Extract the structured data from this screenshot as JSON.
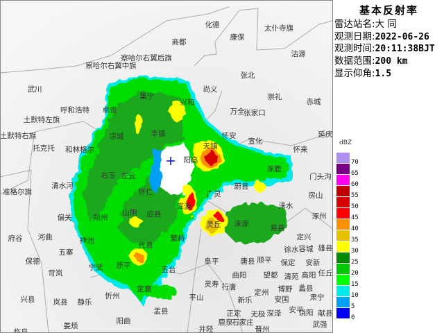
{
  "panel": {
    "title": "基本反射率",
    "rows": [
      {
        "label": "雷达站名:",
        "value": "大 同"
      },
      {
        "label": "观测日期:",
        "value": "2022-06-26"
      },
      {
        "label": "观测时间:",
        "value": "20:11:38BJT"
      },
      {
        "label": "数据范围:",
        "value": "200 km"
      },
      {
        "label": "显示仰角:",
        "value": "1.5"
      }
    ]
  },
  "legend": {
    "unit": "dBZ",
    "items": [
      {
        "value": "70",
        "color": "#ad90f0"
      },
      {
        "value": "65",
        "color": "#780084"
      },
      {
        "value": "60",
        "color": "#ff00f0"
      },
      {
        "value": "55",
        "color": "#c00000"
      },
      {
        "value": "50",
        "color": "#d60000"
      },
      {
        "value": "45",
        "color": "#ff0000"
      },
      {
        "value": "40",
        "color": "#ff9000"
      },
      {
        "value": "35",
        "color": "#e7c000"
      },
      {
        "value": "30",
        "color": "#ffff00"
      },
      {
        "value": "25",
        "color": "#008800"
      },
      {
        "value": "20",
        "color": "#00c800"
      },
      {
        "value": "15",
        "color": "#00ff00"
      },
      {
        "value": "10",
        "color": "#00ecec"
      },
      {
        "value": "5",
        "color": "#00a0f6"
      },
      {
        "value": "0",
        "color": "#0000f6"
      }
    ]
  },
  "map": {
    "places": [
      "化德",
      "康保",
      "太仆寺旗",
      "商都",
      "沽源",
      "察哈尔右翼后旗",
      "察哈尔右翼中旗",
      "张北",
      "武川",
      "尚义",
      "崇礼",
      "赤城",
      "兴和",
      "卓资",
      "呼和浩特",
      "集宁",
      "万全",
      "张家口",
      "土默特左旗",
      "丰镇",
      "凉城",
      "土默特右旗",
      "怀安",
      "宣化",
      "延庆",
      "托克托",
      "和林格尔",
      "怀来",
      "天镇",
      "阳高",
      "涿鹿",
      "门头沟",
      "右玉",
      "左云",
      "准格尔旗",
      "清水河",
      "蔚县",
      "怀仁",
      "广灵",
      "房山",
      "浑源",
      "涞水",
      "山阴",
      "朔州",
      "应县",
      "涿州",
      "偏关",
      "灵丘",
      "涞源",
      "易县",
      "府谷",
      "河曲",
      "繁峙",
      "定兴",
      "神池",
      "五寨",
      "代县",
      "徐水",
      "容城",
      "雄县",
      "保德",
      "阜平",
      "唐县",
      "顺平",
      "保定",
      "安新",
      "宁武",
      "原平",
      "五台",
      "苛岚",
      "曲阳",
      "望都",
      "清苑",
      "高阳",
      "任丘",
      "灵寿",
      "行唐",
      "定襄",
      "蠡县",
      "博野",
      "兴县",
      "岚县",
      "静乐",
      "忻州",
      "平山",
      "定州",
      "新乐",
      "安国",
      "肃宁",
      "盂县",
      "正定",
      "无极",
      "深泽",
      "安平",
      "饶阳",
      "献县",
      "阳曲",
      "娄烦",
      "鹿泉",
      "石家庄",
      "武强",
      "井陉",
      "晋州",
      "临县"
    ],
    "radar_site_icon": "plus-marker-icon"
  }
}
